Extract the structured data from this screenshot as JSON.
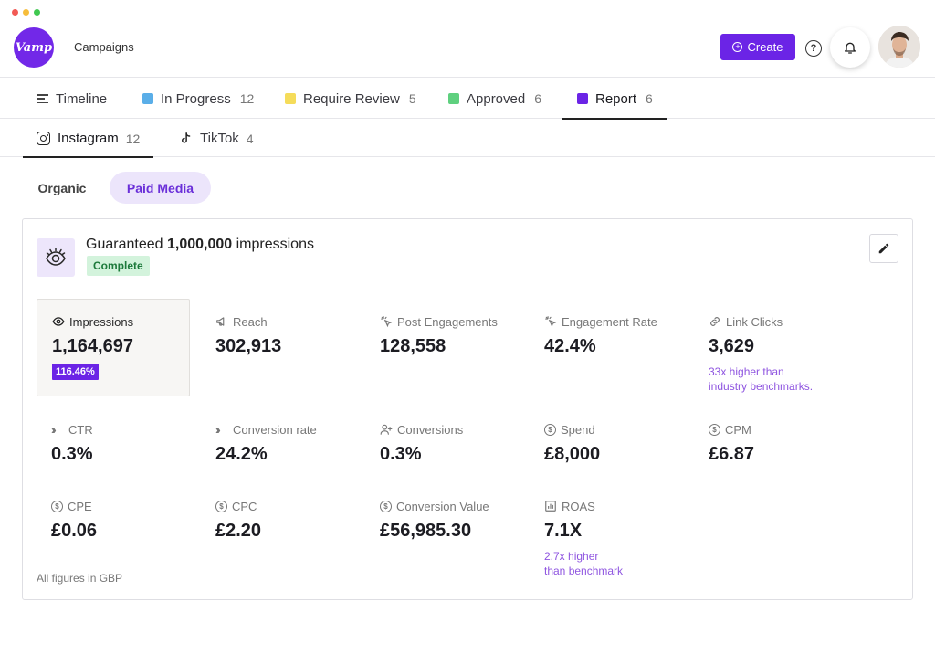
{
  "window": {
    "controls": [
      "close",
      "minimize",
      "maximize"
    ]
  },
  "header": {
    "logo_text": "Vamp",
    "title": "Campaigns",
    "create_label": "Create",
    "help_label": "?",
    "accent": "#6b24e6"
  },
  "status_tabs": [
    {
      "label": "Timeline",
      "count": "",
      "icon": "timeline-icon"
    },
    {
      "label": "In Progress",
      "count": "12",
      "color": "#5aaee8"
    },
    {
      "label": "Require Review",
      "count": "5",
      "color": "#f5dc5a"
    },
    {
      "label": "Approved",
      "count": "6",
      "color": "#5fd07f"
    },
    {
      "label": "Report",
      "count": "6",
      "color": "#6b24e6",
      "active": true
    }
  ],
  "platform_tabs": [
    {
      "label": "Instagram",
      "count": "12",
      "icon": "instagram-icon",
      "active": true
    },
    {
      "label": "TikTok",
      "count": "4",
      "icon": "tiktok-icon"
    }
  ],
  "media_toggle": {
    "organic": "Organic",
    "paid": "Paid Media",
    "selected": "Paid Media"
  },
  "goal": {
    "prefix": "Guaranteed",
    "amount": "1,000,000",
    "suffix": "impressions",
    "status": "Complete"
  },
  "metrics": [
    {
      "label": "Impressions",
      "value": "1,164,697",
      "badge": "116.46%",
      "icon": "eye-icon"
    },
    {
      "label": "Reach",
      "value": "302,913",
      "icon": "megaphone-icon"
    },
    {
      "label": "Post Engagements",
      "value": "128,558",
      "icon": "click-icon"
    },
    {
      "label": "Engagement Rate",
      "value": "42.4%",
      "icon": "click-icon"
    },
    {
      "label": "Link Clicks",
      "value": "3,629",
      "note": [
        "33x higher than",
        "industry benchmarks."
      ],
      "icon": "link-icon"
    },
    {
      "label": "CTR",
      "value": "0.3%",
      "icon": "chevrons-icon"
    },
    {
      "label": "Conversion rate",
      "value": "24.2%",
      "icon": "chevrons-icon"
    },
    {
      "label": "Conversions",
      "value": "0.3%",
      "icon": "user-plus-icon"
    },
    {
      "label": "Spend",
      "value": "£8,000",
      "icon": "dollar-icon"
    },
    {
      "label": "CPM",
      "value": "£6.87",
      "icon": "dollar-icon"
    },
    {
      "label": "CPE",
      "value": "£0.06",
      "icon": "dollar-icon"
    },
    {
      "label": "CPC",
      "value": "£2.20",
      "icon": "dollar-icon"
    },
    {
      "label": "Conversion Value",
      "value": "£56,985.30",
      "icon": "dollar-icon"
    },
    {
      "label": "ROAS",
      "value": "7.1X",
      "note": [
        "2.7x higher",
        "than benchmark"
      ],
      "icon": "bar-chart-icon"
    }
  ],
  "footer_note": "All figures in GBP"
}
